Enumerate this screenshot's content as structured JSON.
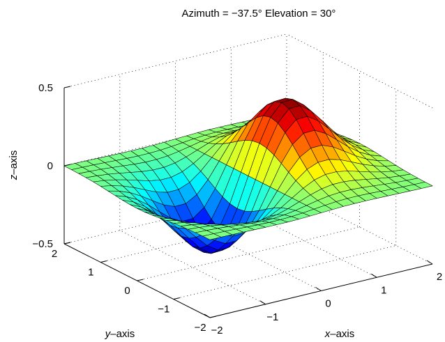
{
  "chart_data": {
    "type": "surface",
    "title": "Azimuth = −37.5° Elevation = 30°",
    "xlabel_prefix": "x",
    "xlabel_suffix": "–axis",
    "ylabel_prefix": "y",
    "ylabel_suffix": "–axis",
    "zlabel_prefix": "z",
    "zlabel_suffix": "–axis",
    "view": {
      "azimuth": -37.5,
      "elevation": 30
    },
    "function": "z = x * exp(-x^2 - y^2)",
    "xlim": [
      -2,
      2
    ],
    "ylim": [
      -2,
      2
    ],
    "zlim": [
      -0.5,
      0.5
    ],
    "grid_points": 21,
    "x_ticks": [
      "−2",
      "−1",
      "0",
      "1",
      "2"
    ],
    "y_ticks": [
      "−2",
      "−1",
      "0",
      "1",
      "2"
    ],
    "z_ticks": [
      "−0.5",
      "0",
      "0.5"
    ],
    "z_tick_values": [
      -0.5,
      0,
      0.5
    ],
    "tick_values": [
      -2,
      -1,
      0,
      1,
      2
    ],
    "colormap": "jet",
    "grid": true,
    "box": "dotted"
  }
}
